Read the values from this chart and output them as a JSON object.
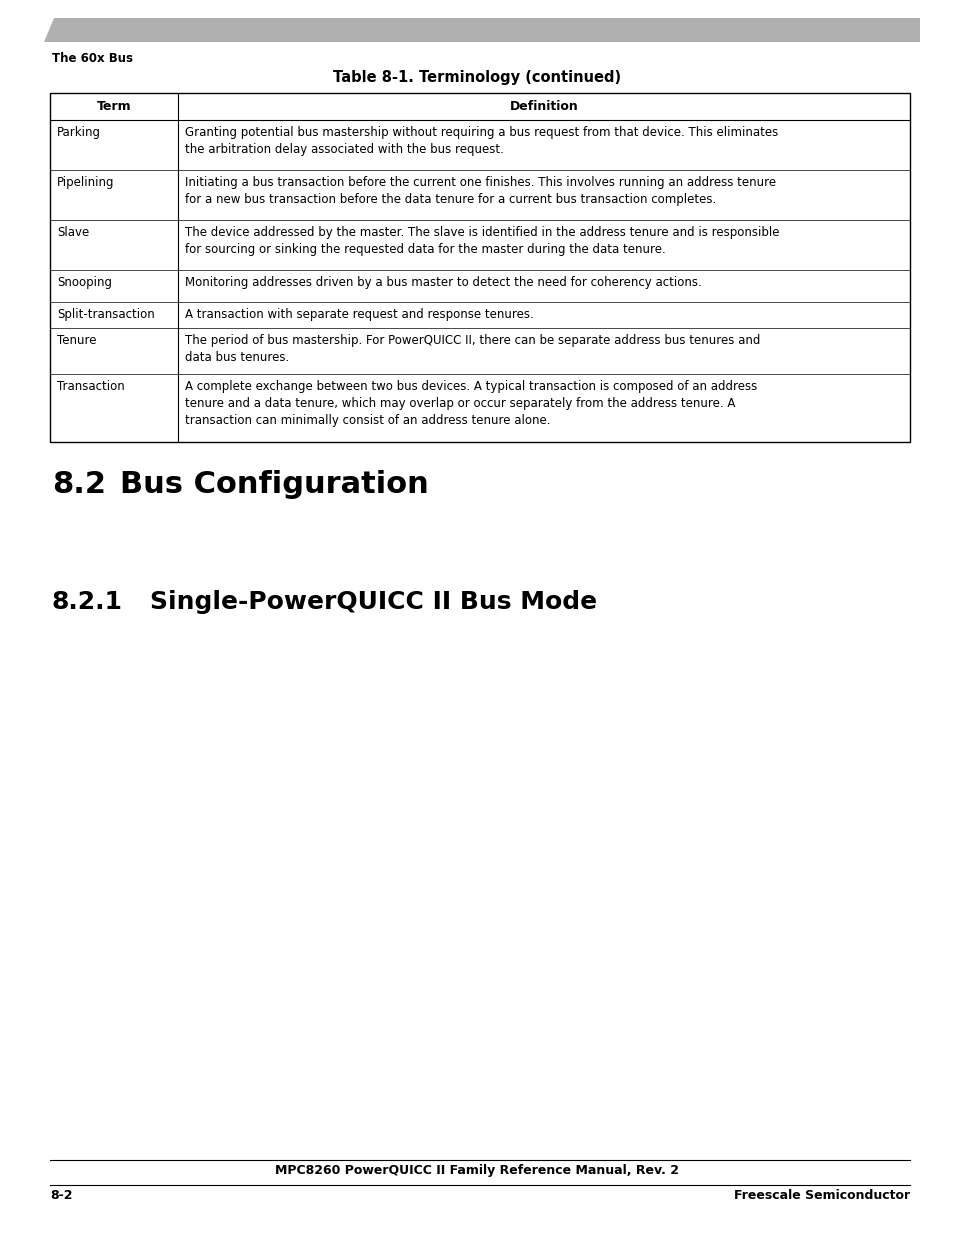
{
  "page_bg": "#ffffff",
  "header_bar_color": "#b0b0b0",
  "header_text": "The 60x Bus",
  "table_title": "Table 8-1. Terminology (continued)",
  "table_header_term": "Term",
  "table_header_def": "Definition",
  "rows": [
    {
      "term": "Parking",
      "definition": "Granting potential bus mastership without requiring a bus request from that device. This eliminates\nthe arbitration delay associated with the bus request."
    },
    {
      "term": "Pipelining",
      "definition": "Initiating a bus transaction before the current one finishes. This involves running an address tenure\nfor a new bus transaction before the data tenure for a current bus transaction completes."
    },
    {
      "term": "Slave",
      "definition": "The device addressed by the master. The slave is identified in the address tenure and is responsible\nfor sourcing or sinking the requested data for the master during the data tenure."
    },
    {
      "term": "Snooping",
      "definition": "Monitoring addresses driven by a bus master to detect the need for coherency actions."
    },
    {
      "term": "Split-transaction",
      "definition": "A transaction with separate request and response tenures."
    },
    {
      "term": "Tenure",
      "definition": "The period of bus mastership. For PowerQUICC II, there can be separate address bus tenures and\ndata bus tenures."
    },
    {
      "term": "Transaction",
      "definition": "A complete exchange between two bus devices. A typical transaction is composed of an address\ntenure and a data tenure, which may overlap or occur separately from the address tenure. A\ntransaction can minimally consist of an address tenure alone."
    }
  ],
  "section_82_title": "8.2",
  "section_82_subtitle": "Bus Configuration",
  "section_821_title": "8.2.1",
  "section_821_subtitle": "Single-PowerQUICC II Bus Mode",
  "footer_center_text": "MPC8260 PowerQUICC II Family Reference Manual, Rev. 2",
  "footer_left_text": "8-2",
  "footer_right_text": "Freescale Semiconductor",
  "font_size_body": 8.5,
  "font_size_header_row": 9.0,
  "font_size_table_title": 10.5,
  "font_size_section82": 22,
  "font_size_section821": 18,
  "font_size_footer": 9.0,
  "font_size_page_header": 8.5
}
